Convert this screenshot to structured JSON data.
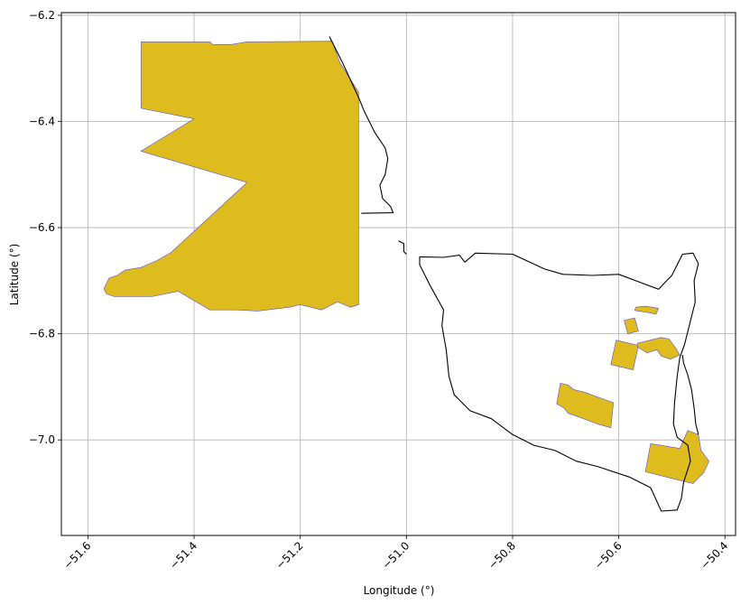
{
  "chart_data": {
    "type": "map",
    "xlabel": "Longitude (°)",
    "ylabel": "Latitude (°)",
    "xlim": [
      -51.65,
      -50.38
    ],
    "ylim": [
      -7.18,
      -6.195
    ],
    "grid": true,
    "xticks": [
      -51.6,
      -51.4,
      -51.2,
      -51.0,
      -50.8,
      -50.6,
      -50.4
    ],
    "xtick_labels": [
      "−51.6",
      "−51.4",
      "−51.2",
      "−51.0",
      "−50.8",
      "−50.6",
      "−50.4"
    ],
    "yticks": [
      -6.2,
      -6.4,
      -6.6,
      -6.8,
      -7.0
    ],
    "ytick_labels": [
      "−6.2",
      "−6.4",
      "−6.6",
      "−6.8",
      "−7.0"
    ],
    "colors": {
      "fill": "#DFBC1E",
      "fill_edge": "#5B4FCF",
      "boundary": "#000000",
      "grid": "#B0B0B0"
    },
    "filled_polygons": [
      {
        "name": "large-area",
        "coords": [
          [
            -51.5,
            -6.25
          ],
          [
            -51.37,
            -6.25
          ],
          [
            -51.365,
            -6.255
          ],
          [
            -51.33,
            -6.255
          ],
          [
            -51.3,
            -6.25
          ],
          [
            -51.14,
            -6.249
          ],
          [
            -51.125,
            -6.29
          ],
          [
            -51.09,
            -6.345
          ],
          [
            -51.09,
            -6.5
          ],
          [
            -51.09,
            -6.55
          ],
          [
            -51.09,
            -6.7
          ],
          [
            -51.09,
            -6.745
          ],
          [
            -51.105,
            -6.75
          ],
          [
            -51.13,
            -6.74
          ],
          [
            -51.16,
            -6.755
          ],
          [
            -51.2,
            -6.745
          ],
          [
            -51.22,
            -6.75
          ],
          [
            -51.28,
            -6.757
          ],
          [
            -51.32,
            -6.755
          ],
          [
            -51.37,
            -6.755
          ],
          [
            -51.43,
            -6.72
          ],
          [
            -51.48,
            -6.73
          ],
          [
            -51.55,
            -6.73
          ],
          [
            -51.565,
            -6.725
          ],
          [
            -51.57,
            -6.715
          ],
          [
            -51.565,
            -6.705
          ],
          [
            -51.56,
            -6.695
          ],
          [
            -51.545,
            -6.69
          ],
          [
            -51.53,
            -6.68
          ],
          [
            -51.5,
            -6.675
          ],
          [
            -51.47,
            -6.662
          ],
          [
            -51.445,
            -6.648
          ],
          [
            -51.3,
            -6.515
          ],
          [
            -51.5,
            -6.456
          ],
          [
            -51.4,
            -6.395
          ],
          [
            -51.5,
            -6.375
          ],
          [
            -51.5,
            -6.25
          ]
        ]
      },
      {
        "name": "patch-1",
        "coords": [
          [
            -50.57,
            -6.756
          ],
          [
            -50.545,
            -6.76
          ],
          [
            -50.53,
            -6.763
          ],
          [
            -50.525,
            -6.752
          ],
          [
            -50.55,
            -6.748
          ],
          [
            -50.568,
            -6.75
          ]
        ]
      },
      {
        "name": "patch-2",
        "coords": [
          [
            -50.59,
            -6.775
          ],
          [
            -50.57,
            -6.77
          ],
          [
            -50.563,
            -6.795
          ],
          [
            -50.583,
            -6.8
          ]
        ]
      },
      {
        "name": "patch-3",
        "coords": [
          [
            -50.605,
            -6.812
          ],
          [
            -50.563,
            -6.822
          ],
          [
            -50.573,
            -6.868
          ],
          [
            -50.615,
            -6.858
          ],
          [
            -50.61,
            -6.835
          ]
        ]
      },
      {
        "name": "patch-4",
        "coords": [
          [
            -50.565,
            -6.818
          ],
          [
            -50.52,
            -6.807
          ],
          [
            -50.505,
            -6.81
          ],
          [
            -50.492,
            -6.828
          ],
          [
            -50.485,
            -6.84
          ],
          [
            -50.503,
            -6.848
          ],
          [
            -50.52,
            -6.842
          ],
          [
            -50.528,
            -6.83
          ],
          [
            -50.547,
            -6.836
          ],
          [
            -50.565,
            -6.825
          ]
        ]
      },
      {
        "name": "patch-5",
        "coords": [
          [
            -50.71,
            -6.893
          ],
          [
            -50.695,
            -6.897
          ],
          [
            -50.685,
            -6.905
          ],
          [
            -50.665,
            -6.91
          ],
          [
            -50.61,
            -6.93
          ],
          [
            -50.615,
            -6.977
          ],
          [
            -50.64,
            -6.97
          ],
          [
            -50.68,
            -6.955
          ],
          [
            -50.695,
            -6.95
          ],
          [
            -50.703,
            -6.94
          ],
          [
            -50.717,
            -6.932
          ]
        ]
      },
      {
        "name": "patch-6",
        "coords": [
          [
            -50.47,
            -6.982
          ],
          [
            -50.45,
            -6.99
          ],
          [
            -50.445,
            -7.02
          ],
          [
            -50.43,
            -7.04
          ],
          [
            -50.44,
            -7.062
          ],
          [
            -50.46,
            -7.082
          ],
          [
            -50.49,
            -7.075
          ],
          [
            -50.55,
            -7.06
          ],
          [
            -50.54,
            -7.007
          ],
          [
            -50.485,
            -7.016
          ]
        ]
      }
    ],
    "boundaries": [
      {
        "name": "outline-north",
        "closed": false,
        "coords": [
          [
            -51.145,
            -6.24
          ],
          [
            -51.12,
            -6.29
          ],
          [
            -51.09,
            -6.355
          ],
          [
            -51.08,
            -6.38
          ],
          [
            -51.06,
            -6.42
          ],
          [
            -51.04,
            -6.45
          ],
          [
            -51.035,
            -6.47
          ],
          [
            -51.04,
            -6.5
          ],
          [
            -51.05,
            -6.52
          ],
          [
            -51.045,
            -6.545
          ],
          [
            -51.03,
            -6.56
          ],
          [
            -51.025,
            -6.572
          ],
          [
            -51.085,
            -6.573
          ]
        ]
      },
      {
        "name": "outline-south",
        "closed": true,
        "coords": [
          [
            -50.975,
            -6.655
          ],
          [
            -50.93,
            -6.656
          ],
          [
            -50.9,
            -6.652
          ],
          [
            -50.89,
            -6.665
          ],
          [
            -50.87,
            -6.648
          ],
          [
            -50.8,
            -6.65
          ],
          [
            -50.74,
            -6.678
          ],
          [
            -50.705,
            -6.688
          ],
          [
            -50.65,
            -6.69
          ],
          [
            -50.6,
            -6.688
          ],
          [
            -50.56,
            -6.703
          ],
          [
            -50.525,
            -6.716
          ],
          [
            -50.5,
            -6.69
          ],
          [
            -50.48,
            -6.65
          ],
          [
            -50.46,
            -6.648
          ],
          [
            -50.45,
            -6.668
          ],
          [
            -50.458,
            -6.7
          ],
          [
            -50.456,
            -6.74
          ],
          [
            -50.466,
            -6.78
          ],
          [
            -50.476,
            -6.82
          ],
          [
            -50.485,
            -6.845
          ],
          [
            -50.49,
            -6.88
          ],
          [
            -50.495,
            -6.93
          ],
          [
            -50.497,
            -6.97
          ],
          [
            -50.49,
            -6.995
          ],
          [
            -50.47,
            -7.01
          ],
          [
            -50.465,
            -7.04
          ],
          [
            -50.478,
            -7.08
          ],
          [
            -50.482,
            -7.11
          ],
          [
            -50.49,
            -7.132
          ],
          [
            -50.52,
            -7.134
          ],
          [
            -50.54,
            -7.09
          ],
          [
            -50.58,
            -7.07
          ],
          [
            -50.64,
            -7.05
          ],
          [
            -50.68,
            -7.04
          ],
          [
            -50.72,
            -7.02
          ],
          [
            -50.76,
            -7.01
          ],
          [
            -50.8,
            -6.99
          ],
          [
            -50.84,
            -6.96
          ],
          [
            -50.88,
            -6.945
          ],
          [
            -50.91,
            -6.915
          ],
          [
            -50.92,
            -6.88
          ],
          [
            -50.925,
            -6.83
          ],
          [
            -50.933,
            -6.785
          ],
          [
            -50.93,
            -6.755
          ],
          [
            -50.955,
            -6.71
          ],
          [
            -50.975,
            -6.67
          ]
        ]
      },
      {
        "name": "outline-inner",
        "closed": false,
        "coords": [
          [
            -50.48,
            -6.84
          ],
          [
            -50.478,
            -6.855
          ],
          [
            -50.47,
            -6.878
          ],
          [
            -50.463,
            -6.905
          ],
          [
            -50.458,
            -6.94
          ],
          [
            -50.455,
            -6.97
          ],
          [
            -50.45,
            -6.99
          ]
        ]
      },
      {
        "name": "outline-dot",
        "closed": false,
        "coords": [
          [
            -51.015,
            -6.625
          ],
          [
            -51.005,
            -6.63
          ],
          [
            -51.005,
            -6.645
          ],
          [
            -51.0,
            -6.65
          ]
        ]
      }
    ]
  }
}
